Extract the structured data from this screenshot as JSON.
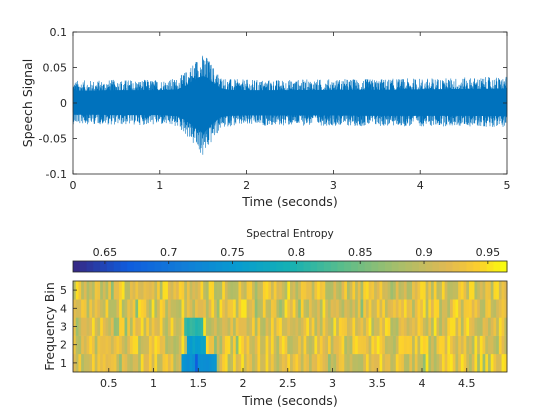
{
  "chart_data": [
    {
      "type": "line",
      "xlabel": "Time (seconds)",
      "ylabel": "Speech Signal",
      "xlim": [
        0,
        5
      ],
      "ylim": [
        -0.1,
        0.1
      ],
      "xticks": [
        0,
        1,
        2,
        3,
        4,
        5
      ],
      "xtick_labels": [
        "0",
        "1",
        "2",
        "3",
        "4",
        "5"
      ],
      "yticks": [
        -0.1,
        -0.05,
        0,
        0.05,
        0.1
      ],
      "ytick_labels": [
        "-0.1",
        "-0.05",
        "0",
        "0.05",
        "0.1"
      ],
      "color": "#0072BD",
      "series": [
        {
          "x": [
            0,
            0.25,
            0.5,
            0.75,
            1.0,
            1.2,
            1.3,
            1.4,
            1.45,
            1.5,
            1.55,
            1.6,
            1.7,
            1.8,
            2.0,
            2.5,
            3.0,
            3.5,
            4.0,
            4.5,
            5.0
          ],
          "envelope_upper": [
            0.032,
            0.032,
            0.033,
            0.033,
            0.033,
            0.035,
            0.045,
            0.06,
            0.066,
            0.069,
            0.065,
            0.055,
            0.038,
            0.034,
            0.033,
            0.033,
            0.034,
            0.034,
            0.035,
            0.036,
            0.037
          ],
          "envelope_lower": [
            -0.03,
            -0.03,
            -0.031,
            -0.031,
            -0.031,
            -0.034,
            -0.045,
            -0.062,
            -0.07,
            -0.078,
            -0.068,
            -0.055,
            -0.037,
            -0.033,
            -0.032,
            -0.032,
            -0.032,
            -0.033,
            -0.033,
            -0.033,
            -0.034
          ]
        }
      ]
    },
    {
      "type": "heatmap",
      "title": "Spectral Entropy",
      "xlabel": "Time (seconds)",
      "ylabel": "Frequency Bin",
      "xlim": [
        0.1,
        4.95
      ],
      "ylim": [
        0.5,
        5.5
      ],
      "xticks": [
        0.5,
        1,
        1.5,
        2,
        2.5,
        3,
        3.5,
        4,
        4.5
      ],
      "xtick_labels": [
        "0.5",
        "1",
        "1.5",
        "2",
        "2.5",
        "3",
        "3.5",
        "4",
        "4.5"
      ],
      "yticks": [
        1,
        2,
        3,
        4,
        5
      ],
      "ytick_labels": [
        "1",
        "2",
        "3",
        "4",
        "5"
      ],
      "colorbar": {
        "limits": [
          0.625,
          0.965
        ],
        "ticks": [
          0.65,
          0.7,
          0.75,
          0.8,
          0.85,
          0.9,
          0.95
        ],
        "tick_labels": [
          "0.65",
          "0.7",
          "0.75",
          "0.8",
          "0.85",
          "0.9",
          "0.95"
        ],
        "colormap": "parula",
        "placement": "top"
      },
      "bins": [
        1,
        2,
        3,
        4,
        5
      ],
      "typical_value": 0.92,
      "notable_cells": [
        {
          "bin": 3,
          "t_start": 1.35,
          "t_end": 1.55,
          "value": 0.81
        },
        {
          "bin": 1,
          "t_start": 1.3,
          "t_end": 1.7,
          "value": 0.74
        },
        {
          "bin": 2,
          "t_start": 1.38,
          "t_end": 1.6,
          "value": 0.76
        },
        {
          "bin": 1,
          "t_start": 1.45,
          "t_end": 1.5,
          "value": 0.66
        }
      ]
    }
  ]
}
